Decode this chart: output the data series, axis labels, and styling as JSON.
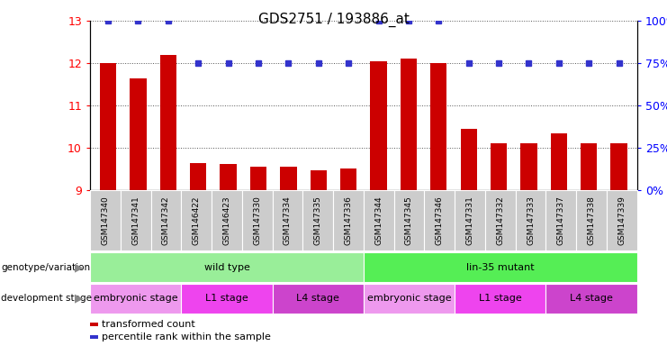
{
  "title": "GDS2751 / 193886_at",
  "samples": [
    "GSM147340",
    "GSM147341",
    "GSM147342",
    "GSM146422",
    "GSM146423",
    "GSM147330",
    "GSM147334",
    "GSM147335",
    "GSM147336",
    "GSM147344",
    "GSM147345",
    "GSM147346",
    "GSM147331",
    "GSM147332",
    "GSM147333",
    "GSM147337",
    "GSM147338",
    "GSM147339"
  ],
  "transformed_count": [
    12.0,
    11.65,
    12.2,
    9.65,
    9.62,
    9.55,
    9.55,
    9.47,
    9.52,
    12.05,
    12.1,
    12.0,
    10.45,
    10.12,
    10.12,
    10.35,
    10.12,
    10.1
  ],
  "percentile_rank": [
    100,
    100,
    100,
    75,
    75,
    75,
    75,
    75,
    75,
    100,
    100,
    100,
    75,
    75,
    75,
    75,
    75,
    75
  ],
  "ylim_left": [
    9,
    13
  ],
  "ylim_right": [
    0,
    100
  ],
  "yticks_left": [
    9,
    10,
    11,
    12,
    13
  ],
  "yticks_right": [
    0,
    25,
    50,
    75,
    100
  ],
  "bar_color": "#cc0000",
  "dot_color": "#3333cc",
  "genotype_groups": [
    {
      "label": "wild type",
      "start": 0,
      "end": 9,
      "color": "#99ee99"
    },
    {
      "label": "lin-35 mutant",
      "start": 9,
      "end": 18,
      "color": "#55ee55"
    }
  ],
  "stage_groups": [
    {
      "label": "embryonic stage",
      "start": 0,
      "end": 3,
      "color": "#ee99ee"
    },
    {
      "label": "L1 stage",
      "start": 3,
      "end": 6,
      "color": "#ee44ee"
    },
    {
      "label": "L4 stage",
      "start": 6,
      "end": 9,
      "color": "#cc44cc"
    },
    {
      "label": "embryonic stage",
      "start": 9,
      "end": 12,
      "color": "#ee99ee"
    },
    {
      "label": "L1 stage",
      "start": 12,
      "end": 15,
      "color": "#ee44ee"
    },
    {
      "label": "L4 stage",
      "start": 15,
      "end": 18,
      "color": "#cc44cc"
    }
  ],
  "legend_items": [
    {
      "label": "transformed count",
      "color": "#cc0000"
    },
    {
      "label": "percentile rank within the sample",
      "color": "#3333cc"
    }
  ],
  "grid_color": "#555555",
  "background_color": "#ffffff",
  "tick_fontsize": 9,
  "title_fontsize": 11,
  "sample_fontsize": 6.5,
  "annot_fontsize": 8,
  "legend_fontsize": 8
}
